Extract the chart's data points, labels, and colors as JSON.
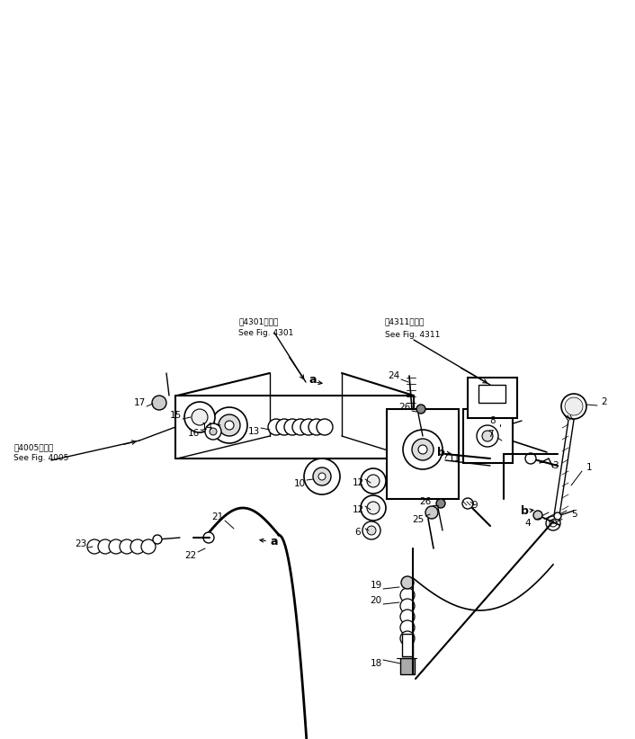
{
  "bg_color": "#ffffff",
  "line_color": "#000000",
  "fig_width": 7.06,
  "fig_height": 8.22,
  "dpi": 100,
  "ref1_line1": "第4301図参照",
  "ref1_line2": "See Fig. 4301",
  "ref2_line1": "第4311図参照",
  "ref2_line2": "See Fig. 4311",
  "ref3_line1": "第4005図参照",
  "ref3_line2": "See Fig. 4005"
}
